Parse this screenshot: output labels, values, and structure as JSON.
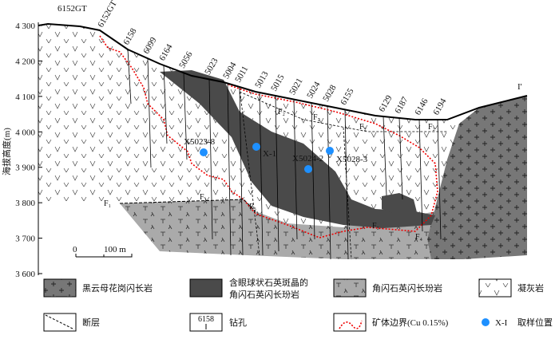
{
  "header": {
    "top_label": "6152GT",
    "section_end": "I'"
  },
  "axis": {
    "title": "海拔高度(m)",
    "ticks": [
      {
        "value": 4300,
        "label": "4 300"
      },
      {
        "value": 4200,
        "label": "4 200"
      },
      {
        "value": 4100,
        "label": "4 100"
      },
      {
        "value": 4000,
        "label": "4 000"
      },
      {
        "value": 3900,
        "label": "3 900"
      },
      {
        "value": 3800,
        "label": "3 800"
      },
      {
        "value": 3700,
        "label": "3 700"
      },
      {
        "value": 3600,
        "label": "3 600"
      }
    ]
  },
  "drill_holes": [
    "6152GT",
    "6158",
    "6099",
    "6164",
    "5056",
    "5023",
    "5004",
    "5011",
    "5013",
    "5015",
    "5021",
    "5024",
    "5028",
    "6155",
    "6129",
    "6187",
    "6146",
    "6194"
  ],
  "samples": [
    "X5023-8",
    "X-1",
    "X5024-2",
    "X5028-3"
  ],
  "faults": [
    "F₁",
    "F₁",
    "F₂",
    "F₂",
    "F₂",
    "F₂",
    "F₃",
    "F₃",
    "F₄"
  ],
  "scale_bar": {
    "start": "0",
    "end": "100 m"
  },
  "legend": {
    "granodiorite": "黑云母花岗闪长岩",
    "eye_porphyry_line1": "含眼球状石英斑晶的",
    "eye_porphyry_line2": "角闪石英闪长玢岩",
    "porphyry": "角闪石英闪长玢岩",
    "tuff": "凝灰岩",
    "fault": "断层",
    "drill_sample": "6158",
    "drill": "钻孔",
    "ore_boundary": "矿体边界(Cu 0.15%)",
    "sample_sample": "X-I",
    "sample": "取样位置"
  }
}
